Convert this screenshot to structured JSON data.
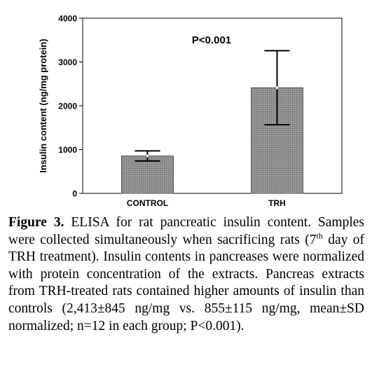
{
  "chart_data": {
    "type": "bar",
    "categories": [
      "CONTROL",
      "TRH"
    ],
    "values": [
      855,
      2413
    ],
    "error_minus": [
      115,
      845
    ],
    "error_plus": [
      115,
      845
    ],
    "ylabel": "Insulin content (ng/mg protein)",
    "ylim": [
      0,
      4000
    ],
    "yticks": [
      0,
      1000,
      2000,
      3000,
      4000
    ],
    "ytick_labels": [
      "0",
      "1000",
      "2000",
      "3000",
      "4000"
    ],
    "annotation": "P<0.001",
    "grid": false,
    "legend": "none",
    "bar_color": "#8c8c8c"
  },
  "caption": {
    "label": "Figure 3.",
    "text_before_sup": " ELISA for rat pancreatic insulin content. Samples were collected simultaneously when sacrificing rats (7",
    "sup": "th",
    "text_after_sup": " day of TRH treatment). Insulin contents in pancreases were normalized with protein concentration of the extracts. Pancreas extracts from TRH-treated rats contained higher amounts of insulin than controls (2,413±845 ng/mg vs. 855±115 ng/mg, mean±SD normalized; n=12 in each group; P<0.001)."
  }
}
